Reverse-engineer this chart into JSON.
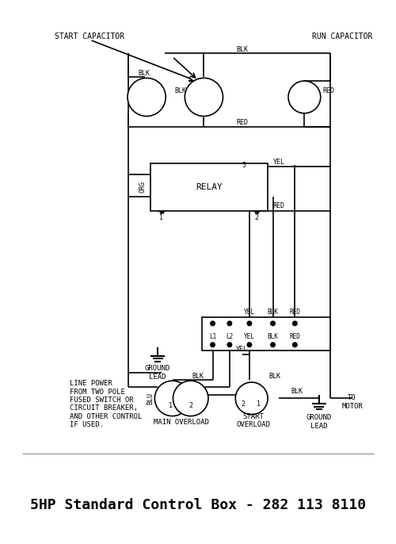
{
  "title": "5HP Standard Control Box - 282 113 8110",
  "title_fontsize": 14,
  "background_color": "#ffffff",
  "line_color": "#000000",
  "label_start_capacitor": "START CAPACITOR",
  "label_run_capacitor": "RUN CAPACITOR",
  "label_relay": "RELAY",
  "label_ground_lead_top": "GROUND\nLEAD",
  "label_line_power": "LINE POWER\nFROM TWO POLE\nFUSED SWITCH OR\nCIRCUIT BREAKER,\nAND OTHER CONTROL\nIF USED.",
  "label_main_overload": "MAIN OVERLOAD",
  "label_start_overload": "START\nOVERLOAD",
  "label_ground_lead_bot": "GROUND\nLEAD",
  "label_to_motor": "TO\nMOTOR",
  "label_blk1": "BLK",
  "label_blk2": "BLK",
  "label_blk3": "BLK",
  "label_red1": "RED",
  "label_red2": "RED",
  "label_yel": "YEL",
  "label_org": "ORG",
  "label_blu": "BLU",
  "label_l1": "L1",
  "label_l2": "L2",
  "label_yel2": "YEL",
  "label_blk4": "BLK",
  "label_red3": "RED",
  "label_relay_1": "1",
  "label_relay_2": "2",
  "label_relay_5": "5",
  "label_terminal_yel": "YEL",
  "label_terminal_blk": "BLK",
  "label_terminal_red": "RED"
}
